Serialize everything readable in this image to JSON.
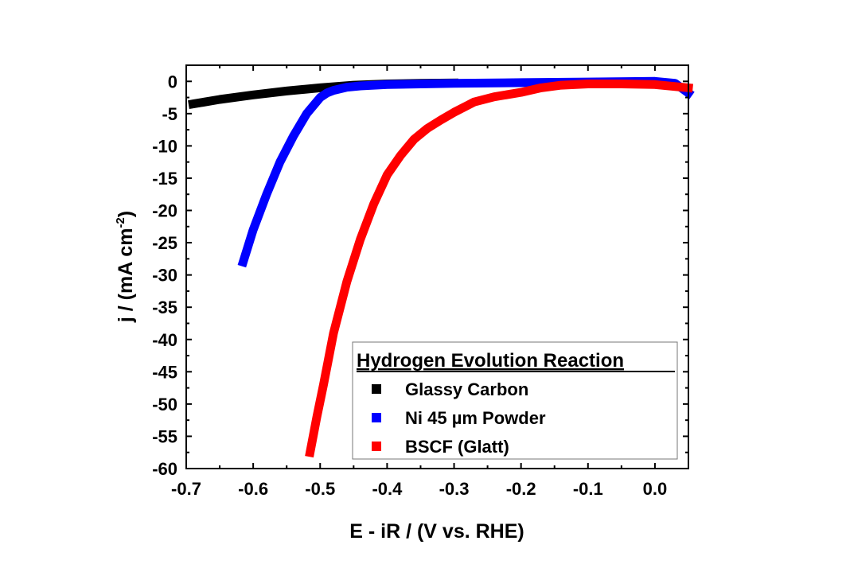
{
  "chart_data": {
    "type": "line",
    "title": "",
    "xlabel": "E - iR / (V vs. RHE)",
    "ylabel": "j / (mA cm",
    "ylabel_superscript": "-2",
    "ylabel_close": ")",
    "xlim": [
      -0.7,
      0.05
    ],
    "ylim": [
      -60,
      2.5
    ],
    "xticks": [
      "-0.7",
      "-0.6",
      "-0.5",
      "-0.4",
      "-0.3",
      "-0.2",
      "-0.1",
      "0.0"
    ],
    "yticks": [
      "0",
      "-5",
      "-10",
      "-15",
      "-20",
      "-25",
      "-30",
      "-35",
      "-40",
      "-45",
      "-50",
      "-55",
      "-60"
    ],
    "grid": false,
    "legend": {
      "title": "Hydrogen Evolution Reaction",
      "placement": "bottom-right"
    },
    "series": [
      {
        "name": "Glassy Carbon",
        "color": "#000000",
        "x": [
          -0.69,
          -0.65,
          -0.6,
          -0.55,
          -0.5,
          -0.45,
          -0.4,
          -0.35,
          -0.3
        ],
        "y": [
          -3.5,
          -2.8,
          -2.1,
          -1.5,
          -1.0,
          -0.6,
          -0.4,
          -0.3,
          -0.25
        ]
      },
      {
        "name": "Ni 45 µm Powder",
        "color": "#0000ff",
        "x": [
          -0.615,
          -0.6,
          -0.58,
          -0.56,
          -0.54,
          -0.52,
          -0.5,
          -0.49,
          -0.48,
          -0.46,
          -0.44,
          -0.4,
          -0.3,
          -0.2,
          -0.1,
          0.0,
          0.03,
          0.05
        ],
        "y": [
          -28,
          -23,
          -17.5,
          -12.5,
          -8.5,
          -5,
          -2.5,
          -1.8,
          -1.4,
          -0.9,
          -0.7,
          -0.5,
          -0.3,
          -0.2,
          -0.1,
          0.0,
          -0.3,
          -1.8
        ]
      },
      {
        "name": "BSCF (Glatt)",
        "color": "#ff0000",
        "x": [
          -0.515,
          -0.505,
          -0.495,
          -0.48,
          -0.46,
          -0.44,
          -0.42,
          -0.4,
          -0.38,
          -0.36,
          -0.34,
          -0.32,
          -0.3,
          -0.27,
          -0.24,
          -0.2,
          -0.17,
          -0.14,
          -0.1,
          -0.05,
          0.0,
          0.05
        ],
        "y": [
          -57.5,
          -52,
          -47,
          -39,
          -31,
          -24.5,
          -19,
          -14.5,
          -11.5,
          -9,
          -7.3,
          -6,
          -4.8,
          -3.2,
          -2.4,
          -1.7,
          -1.0,
          -0.6,
          -0.4,
          -0.4,
          -0.5,
          -1.0
        ]
      }
    ]
  }
}
